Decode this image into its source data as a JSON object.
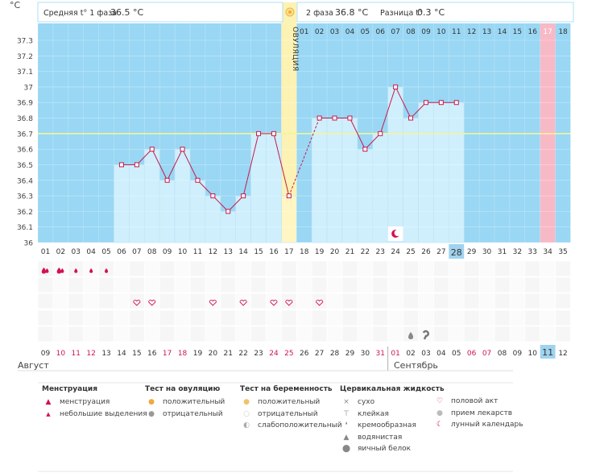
{
  "header": {
    "unit": "°C",
    "phase1_label": "Средняя t° 1 фаза",
    "phase1_value": "36.5 °C",
    "phase2_label": "2 фаза",
    "phase2_value": "36.8 °C",
    "diff_label": "Разница t°",
    "diff_value": "0.3 °C"
  },
  "chart_data": {
    "type": "bar",
    "title": "",
    "ylabel": "°C",
    "ylim": [
      36.0,
      37.3
    ],
    "yticks": [
      "36",
      "36.1",
      "36.2",
      "36.3",
      "36.4",
      "36.5",
      "36.6",
      "36.7",
      "36.8",
      "36.9",
      "37",
      "37.1",
      "37.2",
      "37.3"
    ],
    "coverline": 36.7,
    "cycle_days": [
      "01",
      "02",
      "03",
      "04",
      "05",
      "06",
      "07",
      "08",
      "09",
      "10",
      "11",
      "12",
      "13",
      "14",
      "15",
      "16",
      "17",
      "18",
      "19",
      "20",
      "21",
      "22",
      "23",
      "24",
      "25",
      "26",
      "27",
      "28",
      "29",
      "30",
      "31",
      "32",
      "33",
      "34",
      "35"
    ],
    "phase2_days": [
      "01",
      "02",
      "03",
      "04",
      "05",
      "06",
      "07",
      "08",
      "09",
      "10",
      "11",
      "12",
      "13",
      "14",
      "15",
      "16",
      "17",
      "18"
    ],
    "ovulation_day": 17,
    "ovulation_label": "ОВУЛЯЦИЯ",
    "highlighted_phase2_day": 17,
    "temperatures": [
      null,
      null,
      null,
      null,
      null,
      36.5,
      36.5,
      36.6,
      36.4,
      36.6,
      36.4,
      36.3,
      36.2,
      36.3,
      36.7,
      36.7,
      36.3,
      null,
      36.8,
      36.8,
      36.8,
      36.6,
      36.7,
      37.0,
      36.8,
      36.9,
      36.9,
      36.9,
      null,
      null,
      null,
      null,
      null,
      null,
      null
    ],
    "dates": [
      "09",
      "10",
      "11",
      "12",
      "13",
      "14",
      "15",
      "16",
      "17",
      "18",
      "19",
      "20",
      "21",
      "22",
      "23",
      "24",
      "25",
      "26",
      "27",
      "28",
      "29",
      "30",
      "31",
      "01",
      "02",
      "03",
      "04",
      "05",
      "06",
      "07",
      "08",
      "09",
      "10",
      "11",
      "12"
    ],
    "red_dates": [
      1,
      2,
      3,
      8,
      9,
      15,
      16,
      22,
      23,
      28,
      29
    ],
    "today_index": 33,
    "current_cycle_day_index": 27,
    "months": [
      "Август",
      "Сентябрь"
    ]
  },
  "markers": {
    "menstruation_big": [
      0,
      1
    ],
    "menstruation_small": [
      2,
      3,
      4
    ],
    "intercourse": [
      6,
      7,
      11,
      13,
      15,
      16,
      18
    ],
    "cervical_watery": [
      24
    ],
    "cervical_creamy": [
      25
    ],
    "lunar": [
      23
    ]
  },
  "legend": {
    "menstruation": {
      "title": "Менструация",
      "items": [
        "менструация",
        "небольшие выделения"
      ]
    },
    "ovulation_test": {
      "title": "Тест на овуляцию",
      "items": [
        "положительный",
        "отрицательный"
      ]
    },
    "pregnancy_test": {
      "title": "Тест на беременность",
      "items": [
        "положительный",
        "отрицательный",
        "слабоположительный"
      ]
    },
    "cervical": {
      "title": "Цервикальная жидкость",
      "items": [
        "сухо",
        "клейкая",
        "кремообразная",
        "водянистая",
        "яичный белок"
      ]
    },
    "other": {
      "items": [
        "половой акт",
        "прием лекарств",
        "лунный календарь"
      ]
    }
  },
  "colors": {
    "sky": "#99d7f4",
    "bar": "#cfeffd",
    "bar_border": "#a6d8f0",
    "line": "#c8194c",
    "ovulation": "#fbf2b4",
    "today": "#f8b9c7",
    "coverline": "#f4f49a",
    "red_text": "#d2124e"
  }
}
